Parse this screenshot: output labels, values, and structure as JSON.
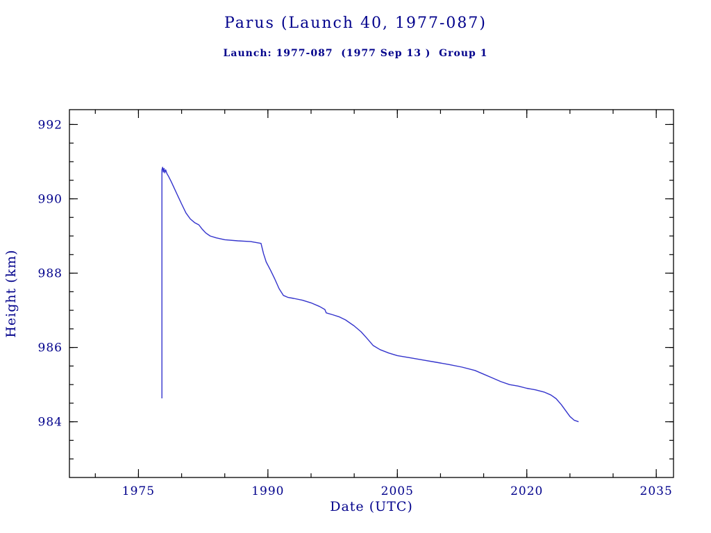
{
  "chart_data": {
    "type": "line",
    "title": "Parus (Launch 40, 1977-087)",
    "subtitle": "Launch: 1977-087  (1977 Sep 13 )  Group 1",
    "xlabel": "Date (UTC)",
    "ylabel": "Height (km)",
    "xlim": [
      1967,
      2037
    ],
    "ylim": [
      982.5,
      992.4
    ],
    "xticks": [
      1975,
      1990,
      2005,
      2020,
      2035
    ],
    "yticks": [
      984,
      986,
      988,
      990,
      992
    ],
    "x_minor_step": 5,
    "y_minor_step": 0.5,
    "grid": false,
    "legend": "none",
    "colors": {
      "text": "#00008B",
      "line": "#3333cc",
      "axis": "#000000"
    },
    "series": [
      {
        "name": "orbital_height_km",
        "points": [
          [
            1977.72,
            984.63
          ],
          [
            1977.72,
            990.78
          ],
          [
            1977.8,
            990.85
          ],
          [
            1977.88,
            990.72
          ],
          [
            1977.96,
            990.82
          ],
          [
            1978.05,
            990.7
          ],
          [
            1978.15,
            990.78
          ],
          [
            1978.3,
            990.68
          ],
          [
            1978.5,
            990.6
          ],
          [
            1978.8,
            990.46
          ],
          [
            1979.2,
            990.26
          ],
          [
            1979.6,
            990.06
          ],
          [
            1980.0,
            989.86
          ],
          [
            1980.5,
            989.62
          ],
          [
            1981.0,
            989.46
          ],
          [
            1981.5,
            989.36
          ],
          [
            1982.0,
            989.3
          ],
          [
            1982.4,
            989.18
          ],
          [
            1982.8,
            989.08
          ],
          [
            1983.3,
            989.0
          ],
          [
            1984.0,
            988.95
          ],
          [
            1985.0,
            988.9
          ],
          [
            1986.5,
            988.87
          ],
          [
            1988.0,
            988.85
          ],
          [
            1989.2,
            988.8
          ],
          [
            1989.5,
            988.52
          ],
          [
            1989.8,
            988.3
          ],
          [
            1990.3,
            988.08
          ],
          [
            1990.8,
            987.84
          ],
          [
            1991.3,
            987.58
          ],
          [
            1991.8,
            987.4
          ],
          [
            1992.3,
            987.35
          ],
          [
            1993.0,
            987.32
          ],
          [
            1994.0,
            987.27
          ],
          [
            1995.0,
            987.2
          ],
          [
            1996.0,
            987.1
          ],
          [
            1996.6,
            987.02
          ],
          [
            1996.75,
            986.93
          ],
          [
            1997.5,
            986.88
          ],
          [
            1998.3,
            986.82
          ],
          [
            1999.0,
            986.74
          ],
          [
            2000.0,
            986.58
          ],
          [
            2000.8,
            986.42
          ],
          [
            2001.5,
            986.24
          ],
          [
            2002.2,
            986.05
          ],
          [
            2003.0,
            985.94
          ],
          [
            2004.0,
            985.85
          ],
          [
            2005.0,
            985.78
          ],
          [
            2006.5,
            985.72
          ],
          [
            2008.0,
            985.66
          ],
          [
            2009.5,
            985.6
          ],
          [
            2011.0,
            985.54
          ],
          [
            2012.5,
            985.47
          ],
          [
            2014.0,
            985.38
          ],
          [
            2015.0,
            985.28
          ],
          [
            2016.0,
            985.18
          ],
          [
            2017.0,
            985.08
          ],
          [
            2018.0,
            985.0
          ],
          [
            2019.0,
            984.96
          ],
          [
            2020.0,
            984.9
          ],
          [
            2021.0,
            984.86
          ],
          [
            2022.0,
            984.8
          ],
          [
            2022.8,
            984.72
          ],
          [
            2023.4,
            984.62
          ],
          [
            2024.0,
            984.46
          ],
          [
            2024.5,
            984.3
          ],
          [
            2025.0,
            984.14
          ],
          [
            2025.5,
            984.04
          ],
          [
            2026.0,
            984.0
          ]
        ]
      }
    ]
  }
}
